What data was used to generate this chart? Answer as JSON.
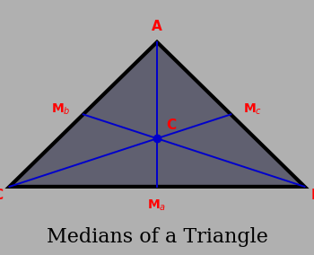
{
  "background_color": "#b0b0b0",
  "fig_width": 3.5,
  "fig_height": 2.84,
  "triangle": {
    "A": [
      0.5,
      0.9
    ],
    "B": [
      0.97,
      0.27
    ],
    "C": [
      0.03,
      0.27
    ]
  },
  "triangle_fill": "#606070",
  "triangle_edge_color": "#000000",
  "triangle_linewidth": 3.0,
  "median_color": "#0000cc",
  "median_linewidth": 1.4,
  "vertex_label_color": "#ff0000",
  "midpoint_label_color": "#ff0000",
  "centroid_color": "#0000cc",
  "centroid_size": 6,
  "label_fontsize": 11,
  "midpoint_label_fontsize": 10,
  "title": "Medians of a Triangle",
  "title_fontsize": 16,
  "title_color": "#000000",
  "xlim": [
    0,
    1
  ],
  "ylim": [
    0.15,
    1.05
  ]
}
